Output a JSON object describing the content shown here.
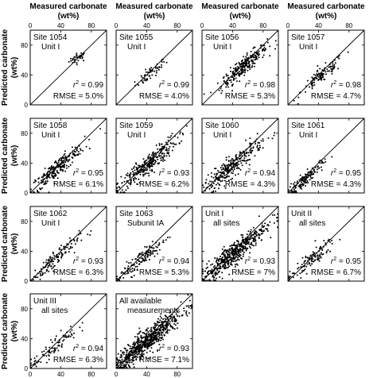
{
  "figure": {
    "top_label": "Measured carbonate",
    "top_unit": "(wt%)",
    "left_label": "Predicted carbonate",
    "left_unit": "(wt%)"
  },
  "chart_data": [
    {
      "type": "scatter",
      "title_line1": "Site 1054",
      "title_line2": "Unit I",
      "r2": "0.99",
      "rmse": "5.0%",
      "xlim": [
        0,
        100
      ],
      "ylim": [
        0,
        100
      ],
      "xticks": [
        0,
        40,
        80
      ],
      "yticks": [
        0,
        40,
        80
      ],
      "cluster": {
        "center": [
          63,
          63
        ],
        "spread": [
          6,
          4
        ],
        "count": 35,
        "tilt": 0.3
      },
      "one_to_one_line": true
    },
    {
      "type": "scatter",
      "title_line1": "Site 1055",
      "title_line2": "Unit I",
      "r2": "0.99",
      "rmse": "4.0%",
      "xlim": [
        0,
        100
      ],
      "ylim": [
        0,
        100
      ],
      "xticks": [
        0,
        40,
        80
      ],
      "yticks": [
        0,
        40,
        80
      ],
      "cluster": {
        "center": [
          45,
          42
        ],
        "spread": [
          10,
          8
        ],
        "count": 55,
        "tilt": 0.8
      },
      "one_to_one_line": true
    },
    {
      "type": "scatter",
      "title_line1": "Site 1056",
      "title_line2": "Unit I",
      "r2": "0.98",
      "rmse": "5.3%",
      "xlim": [
        0,
        100
      ],
      "ylim": [
        0,
        100
      ],
      "xticks": [
        0,
        40,
        80
      ],
      "yticks": [
        0,
        40,
        80
      ],
      "cluster": {
        "center": [
          55,
          52
        ],
        "spread": [
          15,
          12
        ],
        "count": 260,
        "tilt": 0.85
      },
      "one_to_one_line": true
    },
    {
      "type": "scatter",
      "title_line1": "Site 1057",
      "title_line2": "Unit I",
      "r2": "0.98",
      "rmse": "4.7%",
      "xlim": [
        0,
        100
      ],
      "ylim": [
        0,
        100
      ],
      "xticks": [
        0,
        40,
        80
      ],
      "yticks": [
        0,
        40,
        80
      ],
      "cluster": {
        "center": [
          45,
          40
        ],
        "spread": [
          14,
          10
        ],
        "count": 110,
        "tilt": 0.8
      },
      "one_to_one_line": true
    },
    {
      "type": "scatter",
      "title_line1": "Site 1058",
      "title_line2": "Unit I",
      "r2": "0.95",
      "rmse": "6.1%",
      "xlim": [
        0,
        100
      ],
      "ylim": [
        0,
        100
      ],
      "xticks": [
        0,
        40,
        80
      ],
      "yticks": [
        0,
        40,
        80
      ],
      "cluster": {
        "center": [
          35,
          33
        ],
        "spread": [
          18,
          12
        ],
        "count": 240,
        "tilt": 0.85
      },
      "one_to_one_line": true
    },
    {
      "type": "scatter",
      "title_line1": "Site 1059",
      "title_line2": "Unit I",
      "r2": "0.93",
      "rmse": "6.2%",
      "xlim": [
        0,
        100
      ],
      "ylim": [
        0,
        100
      ],
      "xticks": [
        0,
        40,
        80
      ],
      "yticks": [
        0,
        40,
        80
      ],
      "cluster": {
        "center": [
          40,
          37
        ],
        "spread": [
          20,
          14
        ],
        "count": 300,
        "tilt": 0.85
      },
      "one_to_one_line": true
    },
    {
      "type": "scatter",
      "title_line1": "Site 1060",
      "title_line2": "Unit I",
      "r2": "0.94",
      "rmse": "4.3%",
      "xlim": [
        0,
        100
      ],
      "ylim": [
        0,
        100
      ],
      "xticks": [
        0,
        40,
        80
      ],
      "yticks": [
        0,
        40,
        80
      ],
      "cluster": {
        "center": [
          40,
          36
        ],
        "spread": [
          20,
          14
        ],
        "count": 300,
        "tilt": 0.85
      },
      "one_to_one_line": true
    },
    {
      "type": "scatter",
      "title_line1": "Site 1061",
      "title_line2": "Unit I",
      "r2": "0.95",
      "rmse": "4.3%",
      "xlim": [
        0,
        100
      ],
      "ylim": [
        0,
        100
      ],
      "xticks": [
        0,
        40,
        80
      ],
      "yticks": [
        0,
        40,
        80
      ],
      "cluster": {
        "center": [
          22,
          18
        ],
        "spread": [
          12,
          9
        ],
        "count": 140,
        "tilt": 0.9
      },
      "one_to_one_line": true
    },
    {
      "type": "scatter",
      "title_line1": "Site 1062",
      "title_line2": "Unit I",
      "r2": "0.93",
      "rmse": "6.3%",
      "xlim": [
        0,
        100
      ],
      "ylim": [
        0,
        100
      ],
      "xticks": [
        0,
        40,
        80
      ],
      "yticks": [
        0,
        40,
        80
      ],
      "cluster": {
        "center": [
          28,
          25
        ],
        "spread": [
          18,
          12
        ],
        "count": 130,
        "tilt": 0.85
      },
      "one_to_one_line": true
    },
    {
      "type": "scatter",
      "title_line1": "Site 1063",
      "title_line2": "Subunit IA",
      "r2": "0.94",
      "rmse": "5.3%",
      "xlim": [
        0,
        100
      ],
      "ylim": [
        0,
        100
      ],
      "xticks": [
        0,
        40,
        80
      ],
      "yticks": [
        0,
        40,
        80
      ],
      "cluster": {
        "center": [
          30,
          27
        ],
        "spread": [
          18,
          12
        ],
        "count": 150,
        "tilt": 0.85
      },
      "one_to_one_line": true
    },
    {
      "type": "scatter",
      "title_line1": "Unit I",
      "title_line2": "all sites",
      "r2": "0.93",
      "rmse": "7%",
      "xlim": [
        0,
        100
      ],
      "ylim": [
        0,
        100
      ],
      "xticks": [
        0,
        40,
        80
      ],
      "yticks": [
        0,
        40,
        80
      ],
      "cluster": {
        "center": [
          40,
          36
        ],
        "spread": [
          22,
          16
        ],
        "count": 500,
        "tilt": 0.85
      },
      "one_to_one_line": true
    },
    {
      "type": "scatter",
      "title_line1": "Unit II",
      "title_line2": "all sites",
      "r2": "0.95",
      "rmse": "6.7%",
      "xlim": [
        0,
        100
      ],
      "ylim": [
        0,
        100
      ],
      "xticks": [
        0,
        40,
        80
      ],
      "yticks": [
        0,
        40,
        80
      ],
      "cluster": {
        "center": [
          30,
          28
        ],
        "spread": [
          16,
          12
        ],
        "count": 110,
        "tilt": 0.85
      },
      "one_to_one_line": true
    },
    {
      "type": "scatter",
      "title_line1": "Unit III",
      "title_line2": "all sites",
      "r2": "0.94",
      "rmse": "6.3%",
      "xlim": [
        0,
        100
      ],
      "ylim": [
        0,
        100
      ],
      "xticks": [
        0,
        40,
        80
      ],
      "yticks": [
        0,
        40,
        80
      ],
      "cluster": {
        "center": [
          30,
          28
        ],
        "spread": [
          16,
          12
        ],
        "count": 90,
        "tilt": 0.85
      },
      "one_to_one_line": true
    },
    {
      "type": "scatter",
      "title_line1": "All available",
      "title_line2": "measurements",
      "r2": "0.93",
      "rmse": "7.1%",
      "xlim": [
        0,
        100
      ],
      "ylim": [
        0,
        100
      ],
      "xticks": [
        0,
        40,
        80
      ],
      "yticks": [
        0,
        40,
        80
      ],
      "cluster": {
        "center": [
          40,
          36
        ],
        "spread": [
          23,
          16
        ],
        "count": 700,
        "tilt": 0.85
      },
      "one_to_one_line": true
    }
  ]
}
